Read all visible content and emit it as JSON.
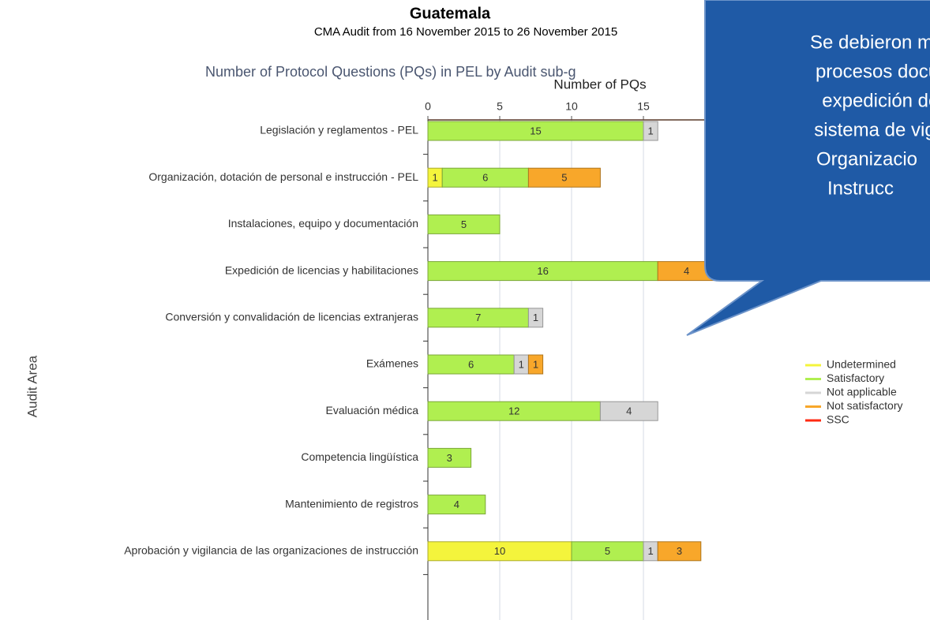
{
  "chart_data": {
    "type": "stacked_bar_horizontal",
    "title": "Guatemala",
    "subtitle": "CMA Audit from 16 November 2015 to 26 November 2015",
    "chart_title": "Number of Protocol Questions (PQs) in PEL by Audit sub-g",
    "x_label": "Number of PQs",
    "y_label": "Audit Area",
    "categories": [
      "Legislación y reglamentos - PEL",
      "Organización, dotación de personal e instrucción - PEL",
      "Instalaciones, equipo y documentación",
      "Expedición de licencias y habilitaciones",
      "Conversión y convalidación de licencias extranjeras",
      "Exámenes",
      "Evaluación médica",
      "Competencia lingüística",
      "Mantenimiento de registros",
      "Aprobación y vigilancia de las organizaciones de instrucción"
    ],
    "series": [
      {
        "name": "Undetermined",
        "color": "#f4f43c",
        "values": [
          null,
          1,
          null,
          null,
          null,
          null,
          null,
          null,
          null,
          10
        ]
      },
      {
        "name": "Satisfactory",
        "color": "#b0ef50",
        "values": [
          15,
          6,
          5,
          16,
          7,
          6,
          12,
          3,
          4,
          5
        ]
      },
      {
        "name": "Not applicable",
        "color": "#d6d6d6",
        "values": [
          1,
          null,
          null,
          null,
          1,
          1,
          4,
          null,
          null,
          1
        ]
      },
      {
        "name": "Not satisfactory",
        "color": "#f8a72a",
        "values": [
          null,
          5,
          null,
          4,
          null,
          1,
          null,
          null,
          null,
          3
        ]
      },
      {
        "name": "SSC",
        "color": "#ff2a12",
        "values": [
          null,
          null,
          null,
          null,
          null,
          null,
          null,
          null,
          null,
          null
        ]
      }
    ],
    "xlim": [
      0,
      20
    ],
    "xticks": [
      0,
      5,
      10,
      15
    ],
    "grid": true,
    "callout": {
      "lines": [
        "Se debieron m",
        "procesos docum",
        "expedición de li",
        "sistema de vigila",
        "Organizacio",
        "Instrucc"
      ]
    }
  }
}
